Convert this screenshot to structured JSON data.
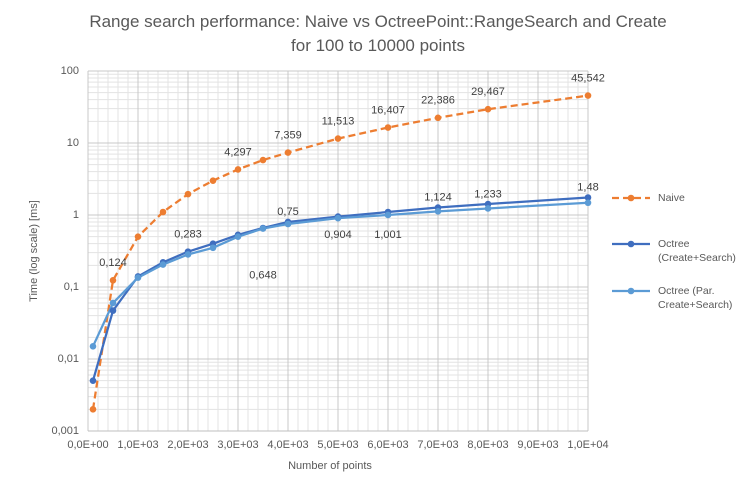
{
  "chart_data": {
    "type": "line",
    "title": [
      "Range search performance: Naive vs OctreePoint::RangeSearch and Create",
      "for 100 to 10000 points"
    ],
    "x_label": "Number  of points",
    "y_label": "Time (log scale) [ms]",
    "x": [
      100,
      500,
      1000,
      1500,
      2000,
      2500,
      3000,
      3500,
      4000,
      5000,
      6000,
      7000,
      8000,
      10000
    ],
    "series": [
      {
        "name": "Naive",
        "color": "#ED7D31",
        "dashed": true,
        "values": [
          0.002,
          0.124,
          0.5,
          1.1,
          1.95,
          3.0,
          4.297,
          5.8,
          7.359,
          11.513,
          16.407,
          22.386,
          29.467,
          45.542
        ],
        "value_labels": [
          null,
          "0,124",
          null,
          null,
          null,
          null,
          "4,297",
          null,
          "7,359",
          "11,513",
          "16,407",
          "22,386",
          "29,467",
          "45,542"
        ]
      },
      {
        "name": "Octree (Create+Search)",
        "color": "#3F6EBF",
        "dashed": false,
        "values": [
          0.005,
          0.047,
          0.14,
          0.22,
          0.31,
          0.4,
          0.53,
          0.66,
          0.8,
          0.95,
          1.1,
          1.27,
          1.42,
          1.75
        ]
      },
      {
        "name": "Octree (Par. Create+Search)",
        "color": "#5B9BD5",
        "dashed": false,
        "values": [
          0.015,
          0.06,
          0.135,
          0.205,
          0.283,
          0.35,
          0.5,
          0.648,
          0.75,
          0.904,
          1.001,
          1.124,
          1.233,
          1.48
        ],
        "value_labels": [
          null,
          null,
          null,
          null,
          "0,283",
          null,
          null,
          "0,648",
          "0,75",
          "0,904",
          "1,001",
          "1,124",
          "1,233",
          "1,48"
        ]
      }
    ],
    "xlim": [
      0,
      10000
    ],
    "xticks": [
      {
        "value": 0,
        "label": "0,0E+00"
      },
      {
        "value": 1000,
        "label": "1,0E+03"
      },
      {
        "value": 2000,
        "label": "2,0E+03"
      },
      {
        "value": 3000,
        "label": "3,0E+03"
      },
      {
        "value": 4000,
        "label": "4,0E+03"
      },
      {
        "value": 5000,
        "label": "5,0E+03"
      },
      {
        "value": 6000,
        "label": "6,0E+03"
      },
      {
        "value": 7000,
        "label": "7,0E+03"
      },
      {
        "value": 8000,
        "label": "8,0E+03"
      },
      {
        "value": 9000,
        "label": "9,0E+03"
      },
      {
        "value": 10000,
        "label": "1,0E+04"
      }
    ],
    "ylim": [
      0.001,
      100
    ],
    "yticks": [
      {
        "value": 0.001,
        "label": "0,001"
      },
      {
        "value": 0.01,
        "label": "0,01"
      },
      {
        "value": 0.1,
        "label": "0,1"
      },
      1,
      10,
      100
    ],
    "log_y": true,
    "grid": true,
    "legend": "right"
  }
}
